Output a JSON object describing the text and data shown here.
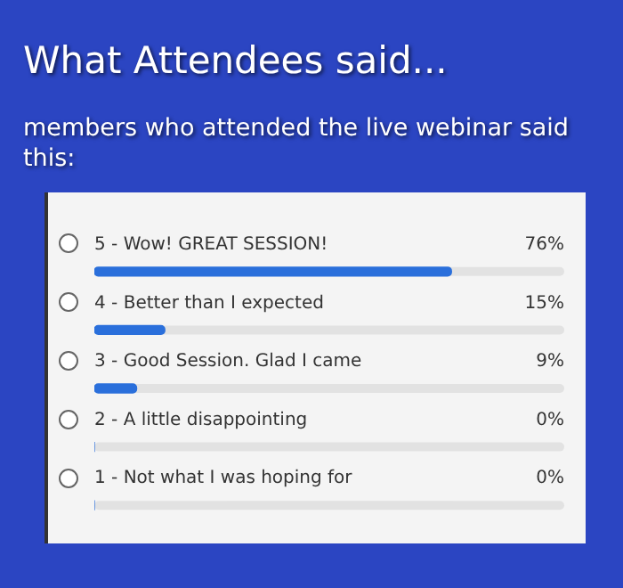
{
  "chart_data": {
    "type": "bar",
    "orientation": "horizontal",
    "title": "What Attendees said...",
    "subtitle": "members who attended the live webinar said this:",
    "categories": [
      "5 - Wow! GREAT SESSION!",
      "4 - Better than I expected",
      "3 - Good Session. Glad I came",
      "2 - A little disappointing",
      "1 - Not what I was hoping for"
    ],
    "values": [
      76,
      15,
      9,
      0,
      0
    ],
    "color": "#2a6fdb",
    "value_labels": [
      "76%",
      "15%",
      "9%",
      "0%",
      "0%"
    ],
    "xlim": [
      0,
      100
    ],
    "tick_labels": false
  }
}
